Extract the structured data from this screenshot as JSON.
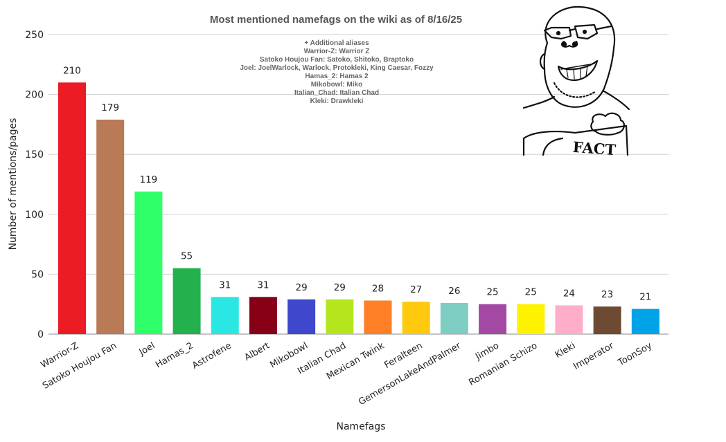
{
  "chart_data": {
    "type": "bar",
    "title": "Most mentioned namefags on the wiki as of 8/16/25",
    "xlabel": "Namefags",
    "ylabel": "Number of mentions/pages",
    "ylim": [
      0,
      250
    ],
    "yticks": [
      0,
      50,
      100,
      150,
      200,
      250
    ],
    "grid": true,
    "data_labels": true,
    "categories": [
      "Warrior-Z",
      "Satoko Houjou Fan",
      "Joel",
      "Hamas_2",
      "Astrofene",
      "Albert",
      "Mikobowl",
      "Italian Chad",
      "Mexican Twink",
      "Feralteen",
      "GemersonLakeAndPalmer",
      "Jimbo",
      "Romanian Schizo",
      "Kleki",
      "Imperator",
      "ToonSoy"
    ],
    "values": [
      210,
      179,
      119,
      55,
      31,
      31,
      29,
      29,
      28,
      27,
      26,
      25,
      25,
      24,
      23,
      21
    ],
    "colors": [
      "#ec1c24",
      "#b97a56",
      "#2fff68",
      "#22b14c",
      "#2ae7e3",
      "#880015",
      "#3f48cc",
      "#b5e61d",
      "#ff7f27",
      "#ffc90e",
      "#7ecdc3",
      "#a349a4",
      "#fff200",
      "#ffaec9",
      "#6f4a32",
      "#00a2e8"
    ],
    "annotation": [
      "+ Additional aliases",
      "Warrior-Z: Warrior Z",
      "Satoko Houjou Fan: Satoko, Shitoko, Braptoko",
      "Joel: JoelWarlock, Warlock, Protokleki, King Caesar, Fozzy",
      "Hamas_2: Hamas 2",
      "Mikobowl: Miko",
      "Italian_Chad: Italian Chad",
      "Kleki: Drawkleki"
    ]
  },
  "image": {
    "icon": "soyjak-fact-icon",
    "text": "FACT"
  }
}
